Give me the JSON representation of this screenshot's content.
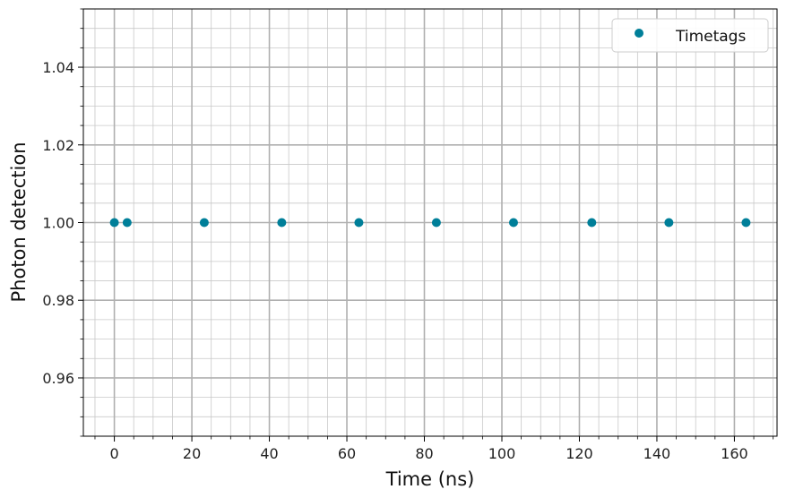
{
  "chart_data": {
    "type": "scatter",
    "xlabel": "Time (ns)",
    "ylabel": "Photon detection",
    "xlim": [
      -8,
      171
    ],
    "ylim": [
      0.945,
      1.055
    ],
    "xticks": [
      0,
      20,
      40,
      60,
      80,
      100,
      120,
      140,
      160
    ],
    "xtick_labels": [
      "0",
      "20",
      "40",
      "60",
      "80",
      "100",
      "120",
      "140",
      "160"
    ],
    "xminor_step": 5,
    "yticks": [
      0.96,
      0.98,
      1.0,
      1.02,
      1.04
    ],
    "ytick_labels": [
      "0.96",
      "0.98",
      "1.00",
      "1.02",
      "1.04"
    ],
    "yminor_step": 0.005,
    "grid": true,
    "legend_position": "top-right",
    "series": [
      {
        "name": "Timetags",
        "color": "#007f99",
        "x": [
          0,
          3.3,
          23.2,
          43.2,
          63.1,
          83.1,
          103.0,
          123.2,
          143.1,
          163.0
        ],
        "y": [
          1.0,
          1.0,
          1.0,
          1.0,
          1.0,
          1.0,
          1.0,
          1.0,
          1.0,
          1.0
        ]
      }
    ]
  }
}
